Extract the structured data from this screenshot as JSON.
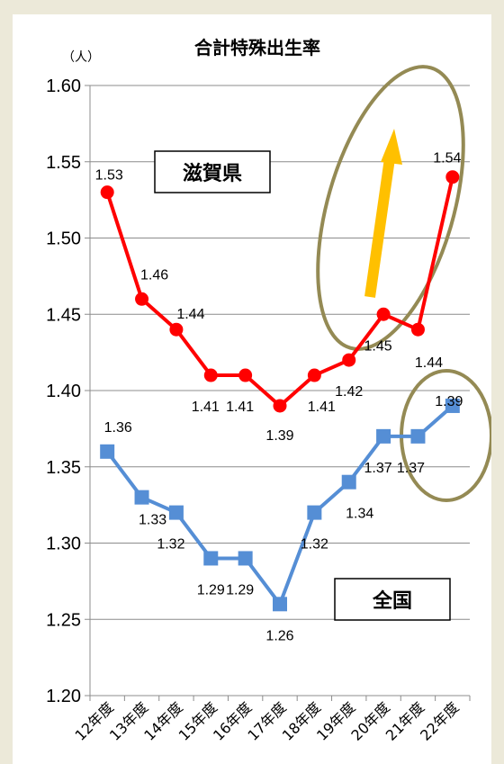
{
  "chart_data": {
    "type": "line",
    "title": "合計特殊出生率",
    "ylabel": "（人）",
    "categories": [
      "12年度",
      "13年度",
      "14年度",
      "15年度",
      "16年度",
      "17年度",
      "18年度",
      "19年度",
      "20年度",
      "21年度",
      "22年度"
    ],
    "ylim": [
      1.2,
      1.6
    ],
    "yticks": [
      "1.20",
      "1.25",
      "1.30",
      "1.35",
      "1.40",
      "1.45",
      "1.50",
      "1.55",
      "1.60"
    ],
    "grid": true,
    "series": [
      {
        "name": "滋賀県",
        "color": "#FF0000",
        "values": [
          1.53,
          1.46,
          1.44,
          1.41,
          1.41,
          1.39,
          1.41,
          1.42,
          1.45,
          1.44,
          1.54
        ],
        "labels": [
          "1.53",
          "1.46",
          "1.44",
          "1.41",
          "1.41",
          "1.39",
          "1.41",
          "1.42",
          "1.45",
          "1.44",
          "1.54"
        ]
      },
      {
        "name": "全国",
        "color": "#558ED5",
        "values": [
          1.36,
          1.33,
          1.32,
          1.29,
          1.29,
          1.26,
          1.32,
          1.34,
          1.37,
          1.37,
          1.39
        ],
        "labels": [
          "1.36",
          "1.33",
          "1.32",
          "1.29",
          "1.29",
          "1.26",
          "1.32",
          "1.34",
          "1.37",
          "1.37",
          "1.39"
        ]
      }
    ],
    "annotations": {
      "arrow_color": "#FFC000",
      "ellipse_color": "#948A54"
    }
  }
}
